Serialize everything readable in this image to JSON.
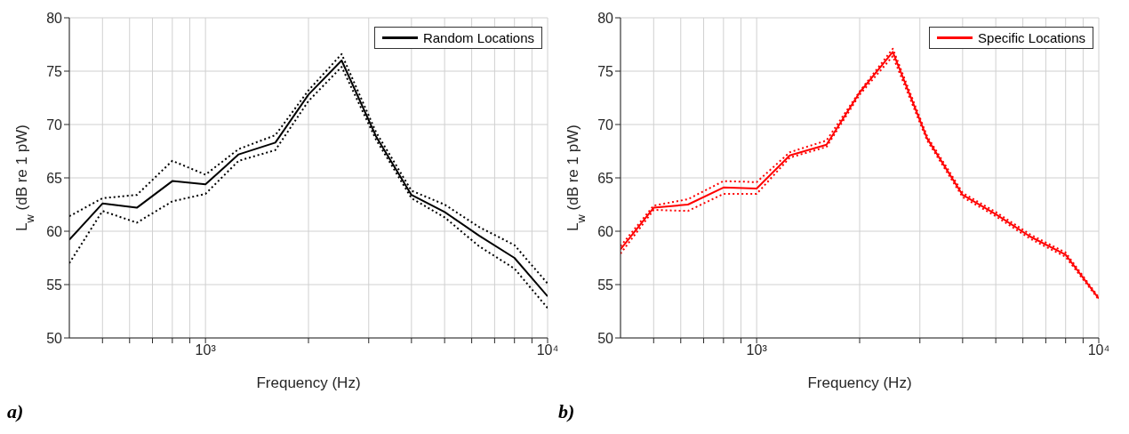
{
  "chart_data": [
    {
      "type": "line",
      "xlabel": "Frequency (Hz)",
      "ylabel": "L$_{w}$ (dB re 1 pW)",
      "log": "x",
      "grid": true,
      "legend": "top right",
      "line_style": "solid",
      "annotations": [
        "a)"
      ],
      "x": [
        400,
        500,
        630,
        800,
        1000,
        1250,
        1600,
        2000,
        2500,
        3150,
        4000,
        5000,
        6300,
        8000,
        10000
      ],
      "xlim": [
        400,
        10000
      ],
      "xticks": [
        {
          "value": 500,
          "label": null
        },
        {
          "value": 600,
          "label": null
        },
        {
          "value": 700,
          "label": null
        },
        {
          "value": 800,
          "label": null
        },
        {
          "value": 900,
          "label": null
        },
        {
          "value": 1000,
          "label": "10³"
        },
        {
          "value": 2000,
          "label": null
        },
        {
          "value": 3000,
          "label": null
        },
        {
          "value": 4000,
          "label": null
        },
        {
          "value": 5000,
          "label": null
        },
        {
          "value": 6000,
          "label": null
        },
        {
          "value": 7000,
          "label": null
        },
        {
          "value": 8000,
          "label": null
        },
        {
          "value": 9000,
          "label": null
        },
        {
          "value": 10000,
          "label": "10⁴"
        }
      ],
      "ylim": [
        50,
        80
      ],
      "yticks": [
        50,
        55,
        60,
        65,
        70,
        75,
        80
      ],
      "series": [
        {
          "name": "Random Locations",
          "color": "#000000",
          "values": [
            59.2,
            62.6,
            62.2,
            64.7,
            64.4,
            67.2,
            68.3,
            72.8,
            76.0,
            68.9,
            63.4,
            61.8,
            59.6,
            57.5,
            53.9
          ]
        },
        {
          "color": "#000000",
          "line_style": "dotted",
          "values": [
            57.0,
            61.9,
            60.8,
            62.8,
            63.5,
            66.6,
            67.6,
            72.2,
            75.4,
            68.6,
            63.1,
            61.3,
            58.6,
            56.5,
            52.8
          ]
        },
        {
          "color": "#000000",
          "line_style": "dotted",
          "values": [
            61.4,
            63.1,
            63.4,
            66.6,
            65.3,
            67.7,
            69.0,
            73.2,
            76.6,
            69.3,
            63.8,
            62.5,
            60.4,
            58.7,
            55.1
          ]
        }
      ]
    },
    {
      "type": "line",
      "xlabel": "Frequency (Hz)",
      "ylabel": "L$_{w}$ (dB re 1 pW)",
      "log": "x",
      "grid": true,
      "legend": "top right",
      "line_style": "solid",
      "annotations": [
        "b)"
      ],
      "x": [
        400,
        500,
        630,
        800,
        1000,
        1250,
        1600,
        2000,
        2500,
        3150,
        4000,
        5000,
        6300,
        8000,
        10000
      ],
      "xlim": [
        400,
        10000
      ],
      "xticks": [
        {
          "value": 500,
          "label": null
        },
        {
          "value": 600,
          "label": null
        },
        {
          "value": 700,
          "label": null
        },
        {
          "value": 800,
          "label": null
        },
        {
          "value": 900,
          "label": null
        },
        {
          "value": 1000,
          "label": "10³"
        },
        {
          "value": 2000,
          "label": null
        },
        {
          "value": 3000,
          "label": null
        },
        {
          "value": 4000,
          "label": null
        },
        {
          "value": 5000,
          "label": null
        },
        {
          "value": 6000,
          "label": null
        },
        {
          "value": 7000,
          "label": null
        },
        {
          "value": 8000,
          "label": null
        },
        {
          "value": 9000,
          "label": null
        },
        {
          "value": 10000,
          "label": "10⁴"
        }
      ],
      "ylim": [
        50,
        80
      ],
      "yticks": [
        50,
        55,
        60,
        65,
        70,
        75,
        80
      ],
      "series": [
        {
          "name": "Specific Locations",
          "color": "#ff0000",
          "values": [
            58.3,
            62.2,
            62.5,
            64.1,
            64.0,
            67.1,
            68.1,
            73.0,
            76.8,
            68.7,
            63.4,
            61.6,
            59.5,
            57.8,
            53.7
          ]
        },
        {
          "color": "#ff0000",
          "line_style": "dotted",
          "values": [
            57.9,
            62.0,
            61.9,
            63.5,
            63.5,
            66.9,
            67.9,
            72.8,
            76.4,
            68.5,
            63.2,
            61.4,
            59.3,
            57.6,
            53.6
          ]
        },
        {
          "color": "#ff0000",
          "line_style": "dotted",
          "values": [
            58.6,
            62.4,
            63.0,
            64.7,
            64.6,
            67.4,
            68.5,
            73.1,
            77.1,
            68.9,
            63.6,
            61.8,
            59.7,
            58.0,
            53.8
          ]
        }
      ]
    }
  ]
}
